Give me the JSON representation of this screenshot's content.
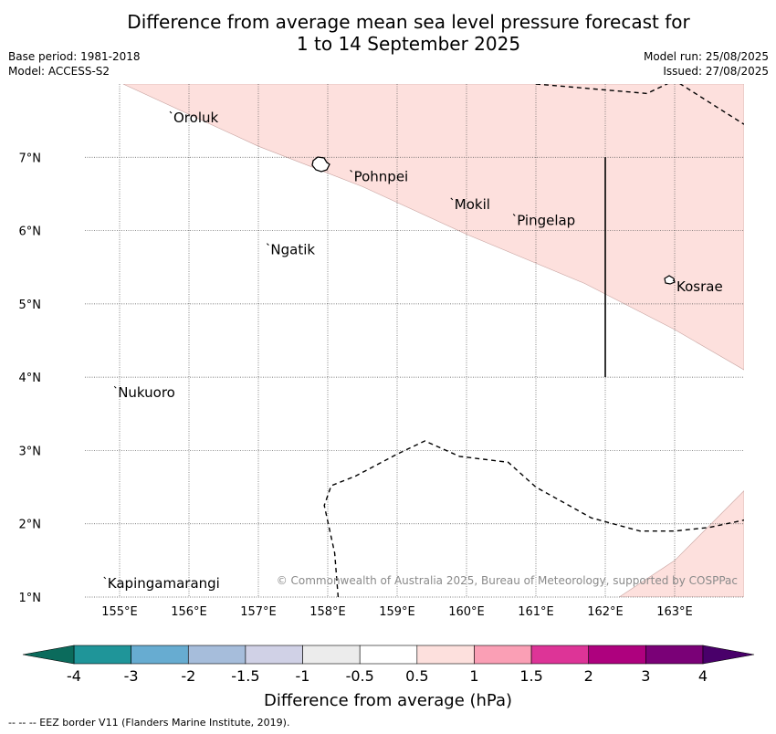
{
  "title": {
    "line1": "Difference from average mean sea level pressure forecast for",
    "line2": "1 to 14 September 2025"
  },
  "meta": {
    "base_period": "Base period: 1981-2018",
    "model": "Model: ACCESS-S2",
    "model_run": "Model run: 25/08/2025",
    "issued": "Issued: 27/08/2025"
  },
  "map": {
    "lon_range": [
      154.5,
      164
    ],
    "lat_range": [
      1,
      8
    ],
    "lon_ticks": [
      155,
      156,
      157,
      158,
      159,
      160,
      161,
      162,
      163
    ],
    "lon_labels": [
      "155°E",
      "156°E",
      "157°E",
      "158°E",
      "159°E",
      "160°E",
      "161°E",
      "162°E",
      "163°E"
    ],
    "lat_ticks": [
      1,
      2,
      3,
      4,
      5,
      6,
      7
    ],
    "lat_labels": [
      "1°N",
      "2°N",
      "3°N",
      "4°N",
      "5°N",
      "6°N",
      "7°N"
    ],
    "grid": "dotted",
    "places": [
      {
        "name": "Oroluk",
        "lon": 155.75,
        "lat": 7.6
      },
      {
        "name": "Pohnpei",
        "lon": 158.35,
        "lat": 6.8
      },
      {
        "name": "Mokil",
        "lon": 159.8,
        "lat": 6.42
      },
      {
        "name": "Pingelap",
        "lon": 160.7,
        "lat": 6.2
      },
      {
        "name": "Ngatik",
        "lon": 157.15,
        "lat": 5.8
      },
      {
        "name": "Kosrae",
        "lon": 163.0,
        "lat": 5.3
      },
      {
        "name": "Nukuoro",
        "lon": 154.95,
        "lat": 3.85
      },
      {
        "name": "Kapingamarangi",
        "lon": 154.8,
        "lat": 1.25
      }
    ],
    "anomaly_shading": {
      "category": "0.5 to 1",
      "color": "#fde0dd",
      "regions": [
        [
          [
            155.05,
            8.0
          ],
          [
            157.0,
            7.15
          ],
          [
            158.5,
            6.6
          ],
          [
            160.0,
            5.95
          ],
          [
            161.7,
            5.28
          ],
          [
            163.0,
            4.65
          ],
          [
            164.0,
            4.1
          ],
          [
            164.0,
            8.0
          ]
        ],
        [
          [
            162.2,
            1.0
          ],
          [
            163.0,
            1.5
          ],
          [
            164.0,
            2.45
          ],
          [
            164.0,
            1.0
          ]
        ]
      ]
    },
    "eez_borders": [
      [
        [
          161.0,
          8.0
        ],
        [
          162.6,
          7.87
        ],
        [
          163.0,
          8.05
        ],
        [
          164.0,
          7.45
        ]
      ],
      [
        [
          158.15,
          1.0
        ],
        [
          158.1,
          1.6
        ],
        [
          157.95,
          2.25
        ],
        [
          158.05,
          2.52
        ],
        [
          158.4,
          2.65
        ],
        [
          159.0,
          2.95
        ],
        [
          159.4,
          3.13
        ],
        [
          159.9,
          2.92
        ],
        [
          160.6,
          2.84
        ],
        [
          161.0,
          2.5
        ],
        [
          161.8,
          2.08
        ],
        [
          162.5,
          1.9
        ],
        [
          163.0,
          1.9
        ],
        [
          163.5,
          1.95
        ],
        [
          164.0,
          2.05
        ]
      ]
    ],
    "boundary_line": {
      "lon": 162.0,
      "lat_from": 4.0,
      "lat_to": 7.0
    },
    "copyright": "© Commonwealth of Australia 2025, Bureau of Meteorology, supported by COSPPac"
  },
  "colorbar": {
    "label": "Difference from average (hPa)",
    "boundaries": [
      -4,
      -3,
      -2,
      -1.5,
      -1,
      -0.5,
      0.5,
      1,
      1.5,
      2,
      3,
      4
    ],
    "tick_labels": [
      "-4",
      "-3",
      "-2",
      "-1.5",
      "-1",
      "-0.5",
      "0.5",
      "1",
      "1.5",
      "2",
      "3",
      "4"
    ],
    "colors": [
      "#1f9599",
      "#67acd1",
      "#a6bddb",
      "#d0d1e6",
      "#ececec",
      "#ffffff",
      "#fde0dd",
      "#fa9fb5",
      "#dd3497",
      "#ae017e",
      "#7a0177"
    ],
    "under_color": "#0b6b5c",
    "over_color": "#49006a",
    "extend": "both"
  },
  "footnote": "--  --  -- EEZ border V11 (Flanders Marine Institute, 2019)."
}
